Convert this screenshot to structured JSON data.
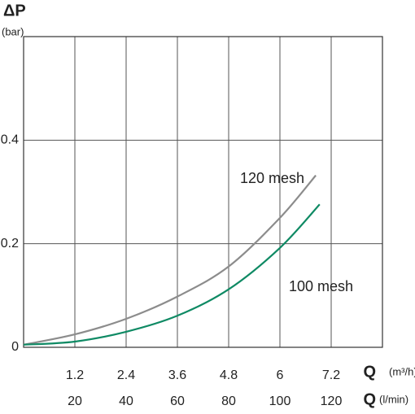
{
  "chart_data": {
    "type": "line",
    "ylabel": "ΔP",
    "yunit": "(bar)",
    "xlabel": "Q",
    "xunit": "(m³/h)",
    "x2label": "Q",
    "x2unit": "(l/min)",
    "xlim": [
      0,
      8.4
    ],
    "xticks": [
      1.2,
      2.4,
      3.6,
      4.8,
      6.0,
      7.2
    ],
    "x2lim": [
      0,
      140
    ],
    "x2ticks": [
      20,
      40,
      60,
      80,
      100,
      120
    ],
    "ylim": [
      0,
      0.6
    ],
    "yticks": [
      0,
      0.2,
      0.4
    ],
    "grid": true,
    "series": [
      {
        "name": "120 mesh",
        "color": "#8c8c8c",
        "x": [
          0,
          1.2,
          2.4,
          3.6,
          4.8,
          6.0,
          6.84
        ],
        "values": [
          0.005,
          0.025,
          0.055,
          0.098,
          0.156,
          0.25,
          0.332
        ]
      },
      {
        "name": "100 mesh",
        "color": "#0f8a64",
        "x": [
          0,
          1.2,
          2.4,
          3.6,
          4.8,
          6.0,
          6.93
        ],
        "values": [
          0.005,
          0.011,
          0.03,
          0.061,
          0.112,
          0.192,
          0.276
        ]
      }
    ]
  }
}
